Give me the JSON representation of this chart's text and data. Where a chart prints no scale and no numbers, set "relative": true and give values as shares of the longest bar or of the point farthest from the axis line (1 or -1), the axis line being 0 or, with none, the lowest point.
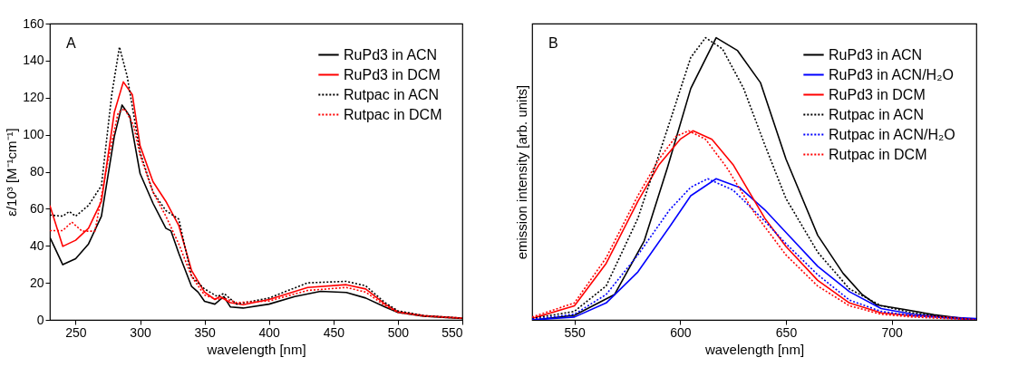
{
  "chart_data": [
    {
      "type": "line",
      "xlabel": "wavelength [nm]",
      "ylabel": "ε/10³ [M⁻¹cm⁻¹]",
      "annotations": [
        "A"
      ],
      "xlim": [
        230,
        550
      ],
      "xticks": [
        250,
        300,
        350,
        400,
        450,
        500,
        550
      ],
      "ylim": [
        0,
        160
      ],
      "yticks": [
        0,
        20,
        40,
        60,
        80,
        100,
        120,
        140,
        160
      ],
      "grid": false,
      "legend": "top right",
      "series": [
        {
          "name": "RuPd3 in ACN",
          "color": "#000000",
          "line_style": "solid",
          "x": [
            230,
            240,
            250,
            260,
            270,
            280,
            286,
            292,
            300,
            310,
            320,
            324,
            330,
            340,
            345,
            350,
            358,
            365,
            370,
            380,
            400,
            420,
            440,
            460,
            475,
            490,
            500,
            520,
            550
          ],
          "values": [
            44.6,
            29.8,
            33,
            41,
            56,
            99,
            116,
            110,
            79,
            63,
            49.5,
            48,
            36,
            18,
            15,
            10,
            8.5,
            12.6,
            7,
            6.4,
            8.5,
            12.6,
            15.4,
            14.8,
            11.8,
            7,
            4,
            2,
            0.7
          ]
        },
        {
          "name": "RuPd3 in DCM",
          "color": "#ff0000",
          "line_style": "solid",
          "x": [
            230,
            240,
            250,
            260,
            270,
            280,
            287,
            294,
            300,
            310,
            320,
            330,
            340,
            350,
            358,
            362,
            370,
            380,
            400,
            430,
            460,
            475,
            490,
            500,
            520,
            550
          ],
          "values": [
            61.8,
            39.7,
            43,
            49.5,
            64,
            112,
            128.5,
            121.6,
            94,
            74.6,
            64,
            51,
            26.6,
            15,
            11,
            12.6,
            9.3,
            8.2,
            11,
            17.5,
            19,
            16.7,
            8.5,
            4.4,
            2.3,
            1
          ]
        },
        {
          "name": "Rutpac in ACN",
          "color": "#000000",
          "line_style": "dotted",
          "x": [
            230,
            240,
            245,
            250,
            260,
            270,
            278,
            284,
            290,
            300,
            310,
            320,
            330,
            340,
            350,
            360,
            365,
            375,
            400,
            430,
            460,
            475,
            490,
            500,
            520,
            550
          ],
          "values": [
            56.6,
            56,
            58.5,
            56,
            61.8,
            72.5,
            121.6,
            147.4,
            131.5,
            90.5,
            69,
            59,
            54.4,
            23.4,
            16.7,
            12.6,
            14.3,
            8.5,
            11.8,
            20,
            20.8,
            18.4,
            9.3,
            4.9,
            2.3,
            1
          ]
        },
        {
          "name": "Rutpac in DCM",
          "color": "#ff0000",
          "line_style": "dotted",
          "x": [
            230,
            240,
            247,
            255,
            265,
            275,
            283,
            288,
            295,
            300,
            310,
            320,
            330,
            340,
            350,
            360,
            365,
            375,
            400,
            430,
            460,
            475,
            490,
            500,
            520,
            550
          ],
          "values": [
            48.2,
            48.2,
            52.8,
            47.9,
            47.9,
            85.6,
            112,
            114,
            105,
            88.9,
            69,
            56,
            41,
            23.4,
            13.4,
            11,
            11.8,
            9.3,
            10.2,
            15.9,
            17.5,
            15,
            7.7,
            4,
            2,
            0.8
          ]
        }
      ]
    },
    {
      "type": "line",
      "xlabel": "wavelength [nm]",
      "ylabel": "emission intensity [arb. units]",
      "annotations": [
        "B"
      ],
      "relative": true,
      "tick_labels": "x",
      "xlim": [
        530,
        740
      ],
      "xticks": [
        550,
        600,
        650,
        700
      ],
      "grid": false,
      "legend": "top right",
      "series": [
        {
          "name": "RuPd3 in ACN",
          "color": "#000000",
          "line_style": "solid",
          "x": [
            531,
            550,
            569,
            583,
            594,
            605,
            617,
            627,
            638,
            650,
            665,
            677,
            686,
            693,
            706,
            720,
            736,
            740
          ],
          "values": [
            0,
            0.016,
            0.09,
            0.28,
            0.54,
            0.82,
            1,
            0.955,
            0.84,
            0.57,
            0.3,
            0.165,
            0.09,
            0.053,
            0.037,
            0.018,
            0.003,
            0
          ]
        },
        {
          "name": "RuPd3 in ACN/H₂O",
          "color": "#0000ff",
          "line_style": "solid",
          "x": [
            530,
            550,
            565,
            580,
            595,
            605,
            617,
            628,
            640,
            650,
            665,
            680,
            695,
            710,
            725,
            740
          ],
          "values": [
            0,
            0.01,
            0.06,
            0.17,
            0.33,
            0.44,
            0.5,
            0.47,
            0.39,
            0.31,
            0.19,
            0.1,
            0.04,
            0.02,
            0.01,
            0.005
          ]
        },
        {
          "name": "RuPd3 in DCM",
          "color": "#ff0000",
          "line_style": "solid",
          "x": [
            530,
            550,
            565,
            580,
            590,
            600,
            606,
            615,
            625,
            640,
            650,
            665,
            680,
            695,
            710,
            725,
            740
          ],
          "values": [
            0.005,
            0.05,
            0.2,
            0.42,
            0.55,
            0.64,
            0.67,
            0.64,
            0.55,
            0.36,
            0.26,
            0.14,
            0.06,
            0.025,
            0.015,
            0.01,
            0
          ]
        },
        {
          "name": "Rutpac in ACN",
          "color": "#000000",
          "line_style": "dotted",
          "x": [
            530,
            550,
            565,
            580,
            595,
            605,
            612,
            620,
            630,
            640,
            650,
            665,
            680,
            695,
            710,
            725,
            740
          ],
          "values": [
            0.005,
            0.03,
            0.12,
            0.36,
            0.7,
            0.93,
            1,
            0.96,
            0.82,
            0.62,
            0.43,
            0.24,
            0.11,
            0.05,
            0.025,
            0.01,
            0
          ]
        },
        {
          "name": "Rutpac in ACN/H₂O",
          "color": "#0000ff",
          "line_style": "dotted",
          "x": [
            530,
            550,
            565,
            580,
            595,
            605,
            613,
            625,
            640,
            650,
            665,
            680,
            695,
            710,
            740
          ],
          "values": [
            0.002,
            0.02,
            0.09,
            0.23,
            0.39,
            0.47,
            0.5,
            0.46,
            0.35,
            0.27,
            0.16,
            0.07,
            0.03,
            0.015,
            0
          ]
        },
        {
          "name": "Rutpac in DCM",
          "color": "#ff0000",
          "line_style": "dotted",
          "x": [
            530,
            550,
            565,
            580,
            590,
            598,
            604,
            612,
            622,
            635,
            650,
            665,
            680,
            695,
            710,
            740
          ],
          "values": [
            0.01,
            0.06,
            0.22,
            0.44,
            0.57,
            0.65,
            0.67,
            0.64,
            0.54,
            0.38,
            0.23,
            0.12,
            0.05,
            0.02,
            0.01,
            0
          ]
        }
      ]
    }
  ]
}
